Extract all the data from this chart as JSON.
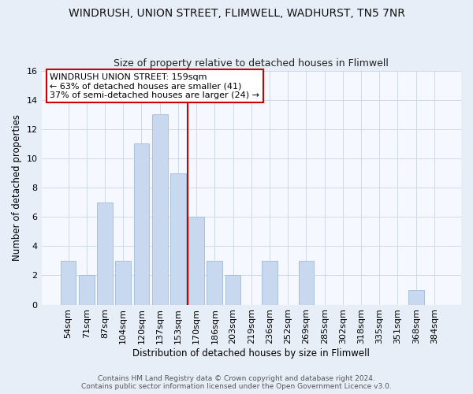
{
  "title": "WINDRUSH, UNION STREET, FLIMWELL, WADHURST, TN5 7NR",
  "subtitle": "Size of property relative to detached houses in Flimwell",
  "xlabel": "Distribution of detached houses by size in Flimwell",
  "ylabel": "Number of detached properties",
  "bar_labels": [
    "54sqm",
    "71sqm",
    "87sqm",
    "104sqm",
    "120sqm",
    "137sqm",
    "153sqm",
    "170sqm",
    "186sqm",
    "203sqm",
    "219sqm",
    "236sqm",
    "252sqm",
    "269sqm",
    "285sqm",
    "302sqm",
    "318sqm",
    "335sqm",
    "351sqm",
    "368sqm",
    "384sqm"
  ],
  "bar_values": [
    3,
    2,
    7,
    3,
    11,
    13,
    9,
    6,
    3,
    2,
    0,
    3,
    0,
    3,
    0,
    0,
    0,
    0,
    0,
    1,
    0
  ],
  "bar_color": "#c8d8ee",
  "bar_edge_color": "#a8c0dc",
  "highlight_index": 6,
  "highlight_line_color": "#cc0000",
  "ylim": [
    0,
    16
  ],
  "yticks": [
    0,
    2,
    4,
    6,
    8,
    10,
    12,
    14,
    16
  ],
  "annotation_title": "WINDRUSH UNION STREET: 159sqm",
  "annotation_line1": "← 63% of detached houses are smaller (41)",
  "annotation_line2": "37% of semi-detached houses are larger (24) →",
  "annotation_box_facecolor": "#ffffff",
  "annotation_box_edgecolor": "#cc0000",
  "footer_line1": "Contains HM Land Registry data © Crown copyright and database right 2024.",
  "footer_line2": "Contains public sector information licensed under the Open Government Licence v3.0.",
  "fig_facecolor": "#e8eef8",
  "plot_facecolor": "#f5f8fe",
  "grid_color": "#d0d8e8",
  "title_fontsize": 10,
  "subtitle_fontsize": 9,
  "axis_label_fontsize": 8.5,
  "tick_fontsize": 8,
  "annotation_fontsize": 8,
  "footer_fontsize": 6.5
}
